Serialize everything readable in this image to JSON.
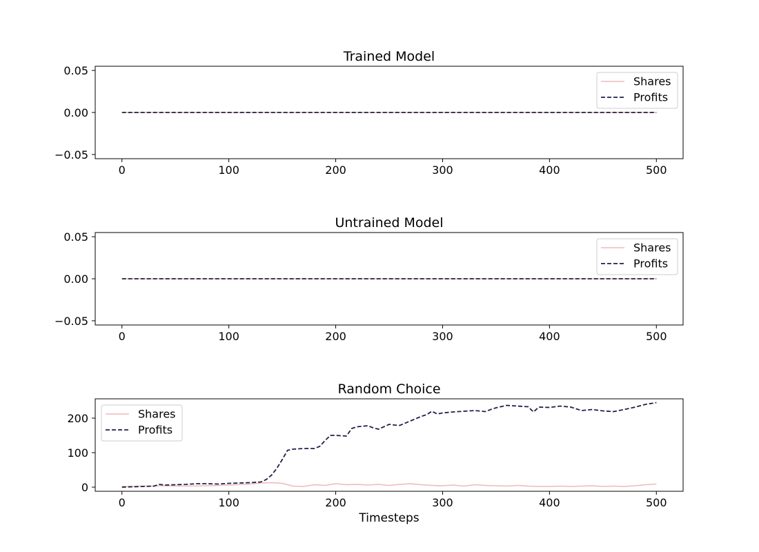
{
  "chart_data": [
    {
      "type": "line",
      "title": "Trained Model",
      "xlabel": "",
      "ylabel": "",
      "xlim": [
        -25,
        525
      ],
      "ylim": [
        -0.055,
        0.055
      ],
      "xticks": [
        0,
        100,
        200,
        300,
        400,
        500
      ],
      "yticks": [
        0.05,
        0.0,
        -0.05
      ],
      "ytick_labels": [
        "0.05",
        "0.00",
        "−0.05"
      ],
      "grid": false,
      "legend_position": "upper right",
      "series": [
        {
          "name": "Shares",
          "style": "solid",
          "color": "#f0b8b8",
          "x": [
            0,
            500
          ],
          "y": [
            0,
            0
          ]
        },
        {
          "name": "Profits",
          "style": "dashed",
          "color": "#1f1f48",
          "x": [
            0,
            500
          ],
          "y": [
            0,
            0
          ]
        }
      ]
    },
    {
      "type": "line",
      "title": "Untrained Model",
      "xlabel": "",
      "ylabel": "",
      "xlim": [
        -25,
        525
      ],
      "ylim": [
        -0.055,
        0.055
      ],
      "xticks": [
        0,
        100,
        200,
        300,
        400,
        500
      ],
      "yticks": [
        0.05,
        0.0,
        -0.05
      ],
      "ytick_labels": [
        "0.05",
        "0.00",
        "−0.05"
      ],
      "grid": false,
      "legend_position": "upper right",
      "series": [
        {
          "name": "Shares",
          "style": "solid",
          "color": "#f0b8b8",
          "x": [
            0,
            500
          ],
          "y": [
            0,
            0
          ]
        },
        {
          "name": "Profits",
          "style": "dashed",
          "color": "#1f1f48",
          "x": [
            0,
            500
          ],
          "y": [
            0,
            0
          ]
        }
      ]
    },
    {
      "type": "line",
      "title": "Random Choice",
      "xlabel": "Timesteps",
      "ylabel": "",
      "xlim": [
        -25,
        525
      ],
      "ylim": [
        -12,
        256
      ],
      "xticks": [
        0,
        100,
        200,
        300,
        400,
        500
      ],
      "yticks": [
        200,
        100,
        0
      ],
      "ytick_labels": [
        "200",
        "100",
        "0"
      ],
      "grid": false,
      "legend_position": "upper left",
      "series": [
        {
          "name": "Shares",
          "style": "solid",
          "color": "#f0b8b8",
          "x": [
            0,
            20,
            40,
            60,
            80,
            100,
            120,
            130,
            140,
            150,
            160,
            170,
            180,
            190,
            200,
            210,
            220,
            230,
            240,
            250,
            260,
            270,
            280,
            290,
            300,
            310,
            320,
            330,
            340,
            350,
            360,
            370,
            380,
            390,
            400,
            410,
            420,
            430,
            440,
            450,
            460,
            470,
            480,
            490,
            500
          ],
          "y": [
            2,
            3,
            4,
            3,
            4,
            6,
            9,
            12,
            13,
            11,
            3,
            2,
            7,
            5,
            10,
            7,
            8,
            6,
            8,
            5,
            8,
            10,
            7,
            5,
            4,
            6,
            3,
            7,
            5,
            4,
            3,
            5,
            3,
            2,
            2,
            3,
            2,
            3,
            4,
            2,
            3,
            2,
            4,
            7,
            9
          ]
        },
        {
          "name": "Profits",
          "style": "dashed",
          "color": "#1f1f48",
          "x": [
            0,
            10,
            20,
            30,
            35,
            40,
            50,
            60,
            70,
            80,
            90,
            100,
            110,
            120,
            130,
            135,
            140,
            145,
            150,
            155,
            160,
            170,
            180,
            185,
            190,
            195,
            200,
            210,
            215,
            220,
            230,
            235,
            240,
            250,
            255,
            260,
            270,
            280,
            285,
            290,
            295,
            300,
            310,
            320,
            330,
            340,
            345,
            350,
            360,
            370,
            380,
            385,
            390,
            400,
            410,
            420,
            430,
            440,
            450,
            460,
            470,
            480,
            490,
            500
          ],
          "y": [
            0,
            1,
            2,
            3,
            8,
            6,
            7,
            8,
            10,
            10,
            9,
            11,
            12,
            13,
            15,
            22,
            35,
            55,
            80,
            107,
            110,
            112,
            112,
            118,
            135,
            150,
            150,
            148,
            170,
            175,
            178,
            172,
            168,
            182,
            180,
            179,
            192,
            205,
            210,
            220,
            212,
            215,
            218,
            220,
            222,
            219,
            225,
            230,
            237,
            235,
            233,
            218,
            232,
            231,
            235,
            232,
            222,
            225,
            221,
            219,
            225,
            232,
            240,
            245
          ]
        }
      ]
    }
  ]
}
